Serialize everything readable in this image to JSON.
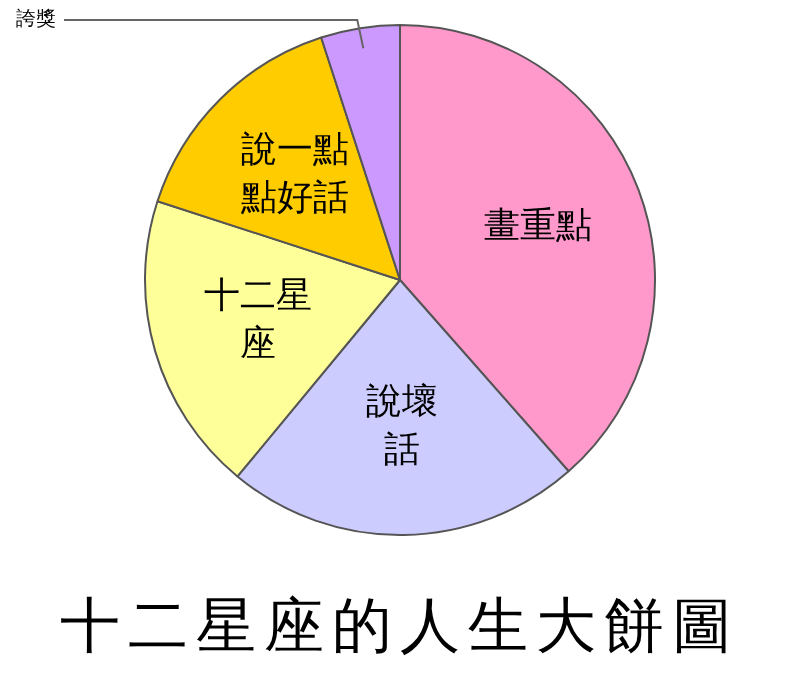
{
  "chart_data": {
    "type": "pie",
    "title": "十二星座的人生大餅圖",
    "categories": [
      "畫重點",
      "說壞話",
      "十二星座",
      "說一點點好話",
      "誇獎"
    ],
    "values": [
      38.5,
      22.5,
      19,
      15,
      5
    ],
    "colors": [
      "#ff99cc",
      "#ccccff",
      "#ffff99",
      "#ffcc00",
      "#cc99ff"
    ],
    "legend": false
  }
}
